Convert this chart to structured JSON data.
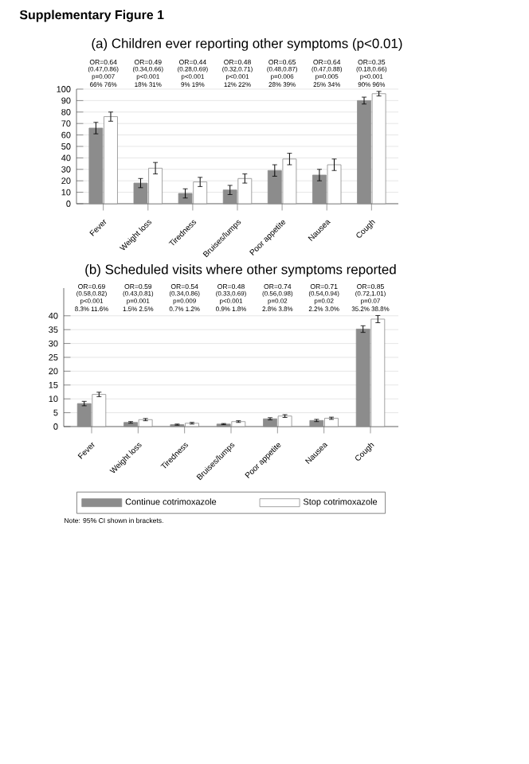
{
  "chart_data": [
    {
      "type": "bar",
      "title": "(a) Children ever reporting other symptoms (p<0.01)",
      "categories": [
        "Fever",
        "Weight loss",
        "Tiredness",
        "Bruises/lumps",
        "Poor appetite",
        "Nausea",
        "Cough"
      ],
      "series": [
        {
          "color": "#8c8c8c",
          "values": [
            66,
            18,
            9,
            12,
            29,
            25,
            90
          ],
          "errors": [
            5,
            4,
            4,
            4,
            5,
            5,
            3
          ]
        },
        {
          "color": "#ffffff",
          "values": [
            76,
            31,
            19,
            22,
            39,
            34,
            96
          ],
          "errors": [
            4,
            5,
            4,
            4,
            5,
            5,
            2
          ]
        }
      ],
      "ylim": [
        0,
        100
      ],
      "yticks": [
        0,
        10,
        20,
        30,
        40,
        50,
        60,
        70,
        80,
        90,
        100
      ],
      "grid": "y",
      "annotations": [
        "OR=0.64",
        "(0.47,0.86)",
        "p=0.007",
        "66% 76%",
        "OR=0.49",
        "(0.34,0.66)",
        "p<0.001",
        "18% 31%",
        "OR=0.44",
        "(0.28,0.69)",
        "p<0.001",
        "9% 19%",
        "OR=0.48",
        "(0.32,0.71)",
        "p<0.001",
        "12% 22%",
        "OR=0.65",
        "(0.48,0.87)",
        "p=0.006",
        "28% 39%",
        "OR=0.64",
        "(0.47,0.88)",
        "p=0.005",
        "25% 34%",
        "OR=0.35",
        "(0.18,0.66)",
        "p<0.001",
        "90% 96%",
        "Supplementary Figure 1"
      ]
    },
    {
      "type": "bar",
      "title": "(b) Scheduled visits where other symptoms reported",
      "categories": [
        "Fever",
        "Weight loss",
        "Tiredness",
        "Bruises/lumps",
        "Poor appetite",
        "Nausea",
        "Cough"
      ],
      "series": [
        {
          "name": "Continue cotrimoxazole",
          "color": "#8c8c8c",
          "values": [
            8.3,
            1.5,
            0.7,
            0.9,
            2.8,
            2.2,
            35.2
          ],
          "errors": [
            0.8,
            0.3,
            0.2,
            0.2,
            0.4,
            0.4,
            1.2
          ]
        },
        {
          "name": "Stop cotrimoxazole",
          "color": "#ffffff",
          "values": [
            11.6,
            2.5,
            1.2,
            1.8,
            3.8,
            3.0,
            38.8
          ],
          "errors": [
            0.8,
            0.4,
            0.3,
            0.3,
            0.5,
            0.4,
            1.3
          ]
        }
      ],
      "ylim": [
        0,
        50
      ],
      "yticks": [
        0,
        5,
        10,
        15,
        20,
        25,
        30,
        35,
        40
      ],
      "grid": "y",
      "legend": "bottom",
      "annotations": [
        "OR=0.69",
        "(0.58,0.82)",
        "p<0.001",
        "8.3% 11.6%",
        "OR=0.59",
        "(0.43,0.81)",
        "p=0.001",
        "1.5% 2.5%",
        "OR=0.54",
        "(0.34,0.86)",
        "p=0.009",
        "0.7% 1.2%",
        "OR=0.48",
        "(0.33,0.69)",
        "p<0.001",
        "0.9% 1.8%",
        "OR=0.74",
        "(0.56,0.98)",
        "p=0.02",
        "2.8% 3.8%",
        "OR=0.71",
        "(0.54,0.94)",
        "p=0.02",
        "2.2% 3.0%",
        "OR=0.85",
        "(0.72,1.01)",
        "p=0.07",
        "35.2% 38.8%",
        "Note: 95% CI shown in brackets."
      ]
    }
  ]
}
